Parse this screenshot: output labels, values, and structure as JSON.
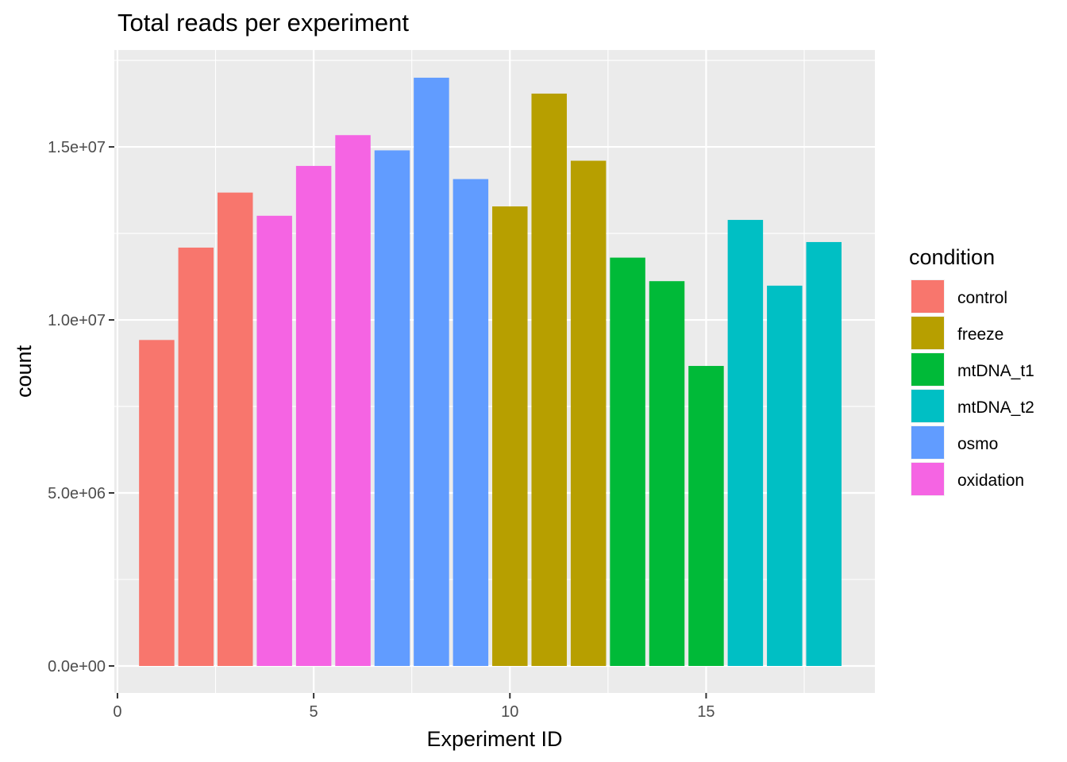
{
  "chart_data": {
    "type": "bar",
    "title": "Total reads per experiment",
    "xlabel": "Experiment ID",
    "ylabel": "count",
    "xlim": [
      -0.08,
      19.3
    ],
    "ylim": [
      -780000,
      17800000
    ],
    "x_ticks": [
      0,
      5,
      10,
      15
    ],
    "x_tick_labels": [
      "0",
      "5",
      "10",
      "15"
    ],
    "x_minor_ticks": [
      2.5,
      7.5,
      12.5,
      17.5
    ],
    "y_ticks": [
      0,
      5000000,
      10000000,
      15000000
    ],
    "y_tick_labels": [
      "0.0e+00",
      "5.0e+06",
      "1.0e+07",
      "1.5e+07"
    ],
    "y_minor_ticks": [
      2500000,
      7500000,
      12500000,
      17500000
    ],
    "grid": true,
    "legend": {
      "title": "condition",
      "position": "right",
      "entries": [
        "control",
        "freeze",
        "mtDNA_t1",
        "mtDNA_t2",
        "osmo",
        "oxidation"
      ]
    },
    "colors": {
      "control": "#F8766D",
      "freeze": "#B79F00",
      "mtDNA_t1": "#00BA38",
      "mtDNA_t2": "#00BFC4",
      "osmo": "#619CFF",
      "oxidation": "#F564E3"
    },
    "bars": [
      {
        "x": 1,
        "value": 9420000,
        "condition": "control"
      },
      {
        "x": 2,
        "value": 12090000,
        "condition": "control"
      },
      {
        "x": 3,
        "value": 13680000,
        "condition": "control"
      },
      {
        "x": 4,
        "value": 13010000,
        "condition": "oxidation"
      },
      {
        "x": 5,
        "value": 14450000,
        "condition": "oxidation"
      },
      {
        "x": 6,
        "value": 15340000,
        "condition": "oxidation"
      },
      {
        "x": 7,
        "value": 14900000,
        "condition": "osmo"
      },
      {
        "x": 8,
        "value": 17000000,
        "condition": "osmo"
      },
      {
        "x": 9,
        "value": 14070000,
        "condition": "osmo"
      },
      {
        "x": 10,
        "value": 13280000,
        "condition": "freeze"
      },
      {
        "x": 11,
        "value": 16540000,
        "condition": "freeze"
      },
      {
        "x": 12,
        "value": 14600000,
        "condition": "freeze"
      },
      {
        "x": 13,
        "value": 11800000,
        "condition": "mtDNA_t1"
      },
      {
        "x": 14,
        "value": 11120000,
        "condition": "mtDNA_t1"
      },
      {
        "x": 15,
        "value": 8670000,
        "condition": "mtDNA_t1"
      },
      {
        "x": 16,
        "value": 12890000,
        "condition": "mtDNA_t2"
      },
      {
        "x": 17,
        "value": 10990000,
        "condition": "mtDNA_t2"
      },
      {
        "x": 18,
        "value": 12250000,
        "condition": "mtDNA_t2"
      }
    ]
  }
}
